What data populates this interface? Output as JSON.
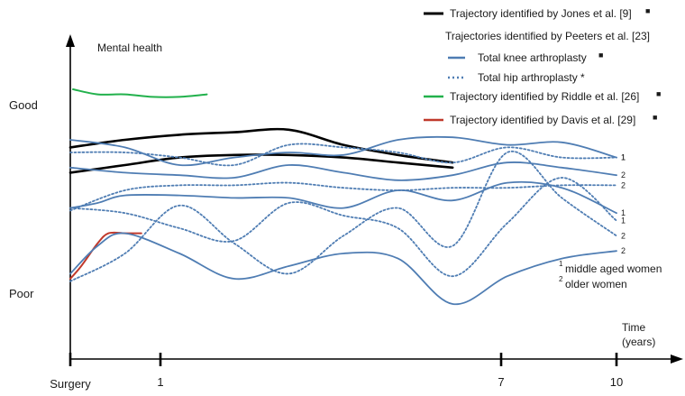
{
  "chart_data": {
    "type": "line",
    "ylabel": "Mental health",
    "y_levels": [
      "Good",
      "Poor"
    ],
    "xlabel_line1": "Time",
    "xlabel_line2": "(years)",
    "x_ticks": [
      "Surgery",
      "1",
      "7",
      "10"
    ],
    "x_tick_values": [
      0,
      1,
      7,
      10
    ],
    "colors": {
      "jones": "#000000",
      "peeters": "#4f7db3",
      "riddle": "#22b14c",
      "davis": "#c0392b"
    },
    "legend": {
      "jones": "Trajectory identified by Jones et al. [9]",
      "peeters_header": "Trajectories identified by Peeters et al. [23]",
      "knee": "Total knee arthroplasty",
      "hip": "Total hip arthroplasty *",
      "riddle": "Trajectory identified by Riddle et al. [26]",
      "davis": "Trajectory identified by Davis et al. [29]",
      "marker": "■"
    },
    "footnotes": [
      {
        "sup": "1",
        "text": "middle aged women"
      },
      {
        "sup": "2",
        "text": "older women"
      }
    ],
    "series": [
      {
        "group": "jones",
        "style": "solid",
        "points": [
          [
            0,
            7.2
          ],
          [
            1,
            7.5
          ],
          [
            2,
            7.7
          ],
          [
            3,
            7.8
          ],
          [
            4,
            7.9
          ],
          [
            5,
            7.3
          ],
          [
            6,
            6.9
          ],
          [
            7,
            6.6
          ]
        ]
      },
      {
        "group": "jones",
        "style": "solid",
        "points": [
          [
            0,
            6.2
          ],
          [
            1,
            6.5
          ],
          [
            2,
            6.8
          ],
          [
            3,
            6.9
          ],
          [
            4,
            6.9
          ],
          [
            5,
            6.8
          ],
          [
            6,
            6.6
          ],
          [
            7,
            6.4
          ]
        ]
      },
      {
        "group": "riddle",
        "style": "solid",
        "points": [
          [
            0.05,
            9.5
          ],
          [
            0.5,
            9.3
          ],
          [
            1,
            9.3
          ],
          [
            1.5,
            9.2
          ],
          [
            2,
            9.2
          ],
          [
            2.5,
            9.3
          ]
        ]
      },
      {
        "group": "davis",
        "style": "solid",
        "points": [
          [
            0,
            2.0
          ],
          [
            0.2,
            2.5
          ],
          [
            0.5,
            3.4
          ],
          [
            0.7,
            3.8
          ],
          [
            1,
            3.8
          ],
          [
            1.3,
            3.8
          ]
        ]
      },
      {
        "group": "knee",
        "style": "solid",
        "label": "1",
        "points": [
          [
            0,
            7.5
          ],
          [
            1,
            7.2
          ],
          [
            2,
            6.5
          ],
          [
            3,
            6.8
          ],
          [
            4,
            7.0
          ],
          [
            5,
            6.9
          ],
          [
            6,
            7.5
          ],
          [
            7,
            7.6
          ],
          [
            8,
            7.3
          ],
          [
            9,
            7.4
          ],
          [
            10,
            6.8
          ]
        ]
      },
      {
        "group": "knee",
        "style": "solid",
        "label": "2",
        "points": [
          [
            0,
            6.4
          ],
          [
            1,
            6.2
          ],
          [
            2,
            6.1
          ],
          [
            3,
            6.0
          ],
          [
            4,
            6.5
          ],
          [
            5,
            6.2
          ],
          [
            6,
            5.9
          ],
          [
            7,
            6.1
          ],
          [
            8,
            6.6
          ],
          [
            9,
            6.4
          ],
          [
            10,
            6.1
          ]
        ]
      },
      {
        "group": "knee",
        "style": "solid",
        "label": "1",
        "points": [
          [
            0,
            4.8
          ],
          [
            0.5,
            5.0
          ],
          [
            1,
            5.3
          ],
          [
            2,
            5.3
          ],
          [
            3,
            5.2
          ],
          [
            4,
            5.2
          ],
          [
            5,
            4.8
          ],
          [
            6,
            5.5
          ],
          [
            7,
            5.1
          ],
          [
            8,
            5.8
          ],
          [
            9,
            5.6
          ],
          [
            10,
            4.6
          ]
        ]
      },
      {
        "group": "knee",
        "style": "solid",
        "label": "2",
        "points": [
          [
            0,
            2.2
          ],
          [
            0.5,
            3.3
          ],
          [
            1,
            3.8
          ],
          [
            2,
            3.0
          ],
          [
            3,
            2.0
          ],
          [
            4,
            2.5
          ],
          [
            5,
            3.0
          ],
          [
            6,
            2.8
          ],
          [
            7,
            1.0
          ],
          [
            8,
            2.1
          ],
          [
            9,
            2.8
          ],
          [
            10,
            3.1
          ]
        ]
      },
      {
        "group": "hip",
        "style": "dotted",
        "label": "1",
        "points": [
          [
            0,
            7.0
          ],
          [
            1,
            7.0
          ],
          [
            2,
            6.8
          ],
          [
            3,
            6.5
          ],
          [
            4,
            7.3
          ],
          [
            5,
            7.2
          ],
          [
            6,
            7.0
          ],
          [
            7,
            6.6
          ],
          [
            8,
            7.2
          ],
          [
            9,
            6.8
          ],
          [
            10,
            6.8
          ]
        ]
      },
      {
        "group": "hip",
        "style": "dotted",
        "label": "2",
        "points": [
          [
            0,
            4.7
          ],
          [
            1,
            5.5
          ],
          [
            2,
            5.7
          ],
          [
            3,
            5.7
          ],
          [
            4,
            5.8
          ],
          [
            5,
            5.6
          ],
          [
            6,
            5.5
          ],
          [
            7,
            5.6
          ],
          [
            8,
            5.6
          ],
          [
            9,
            5.7
          ],
          [
            10,
            5.7
          ]
        ]
      },
      {
        "group": "hip",
        "style": "dotted",
        "label": "1",
        "points": [
          [
            0,
            4.8
          ],
          [
            1,
            4.6
          ],
          [
            2,
            4.0
          ],
          [
            3,
            3.5
          ],
          [
            4,
            5.0
          ],
          [
            5,
            4.5
          ],
          [
            6,
            4.0
          ],
          [
            7,
            2.1
          ],
          [
            8,
            4.2
          ],
          [
            9,
            6.0
          ],
          [
            10,
            4.3
          ]
        ]
      },
      {
        "group": "hip",
        "style": "dotted",
        "label": "2",
        "points": [
          [
            0,
            1.9
          ],
          [
            1,
            3.0
          ],
          [
            2,
            4.9
          ],
          [
            3,
            3.4
          ],
          [
            4,
            2.2
          ],
          [
            5,
            3.7
          ],
          [
            6,
            4.8
          ],
          [
            7,
            3.3
          ],
          [
            8,
            7.0
          ],
          [
            9,
            5.2
          ],
          [
            10,
            3.7
          ]
        ]
      }
    ]
  }
}
